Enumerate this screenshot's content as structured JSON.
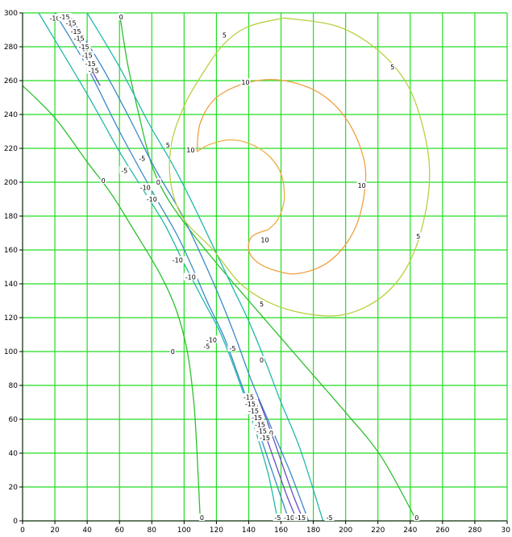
{
  "chart_data": {
    "type": "contour",
    "title": "",
    "xlabel": "",
    "ylabel": "",
    "xlim": [
      0,
      300
    ],
    "ylim": [
      0,
      300
    ],
    "grid": true,
    "x_ticks": [
      "0",
      "20",
      "40",
      "60",
      "80",
      "100",
      "120",
      "140",
      "160",
      "180",
      "200",
      "220",
      "240",
      "260",
      "280",
      "30"
    ],
    "y_ticks": [
      "0",
      "20",
      "40",
      "60",
      "80",
      "100",
      "120",
      "140",
      "160",
      "180",
      "200",
      "220",
      "240",
      "260",
      "280",
      "300"
    ],
    "colors": {
      "grid": "#22dd22",
      "axis": "#000000",
      "level_0": "#2cc02c",
      "level_m5": "#22b8aa",
      "level_m10": "#3b88c8",
      "level_m15": "#6a4cc0",
      "level_5": "#b8d040",
      "level_10": "#f0a040",
      "level_spiral": "#eab040"
    },
    "contours": [
      {
        "level": "0",
        "label": "0",
        "color_key": "level_0",
        "points": [
          [
            0,
            257
          ],
          [
            20,
            238
          ],
          [
            40,
            212
          ],
          [
            55,
            193
          ],
          [
            70,
            170
          ],
          [
            85,
            146
          ],
          [
            95,
            125
          ],
          [
            102,
            100
          ],
          [
            106,
            70
          ],
          [
            108,
            40
          ],
          [
            110,
            0
          ]
        ],
        "label_points": [
          [
            50,
            201
          ],
          [
            93,
            100
          ],
          [
            111,
            0
          ]
        ]
      },
      {
        "level": "0",
        "label": "0",
        "color_key": "level_0",
        "points": [
          [
            60,
            300
          ],
          [
            65,
            270
          ],
          [
            72,
            240
          ],
          [
            80,
            210
          ],
          [
            90,
            190
          ],
          [
            105,
            170
          ],
          [
            122,
            150
          ],
          [
            140,
            130
          ],
          [
            160,
            108
          ],
          [
            180,
            86
          ],
          [
            200,
            64
          ],
          [
            222,
            38
          ],
          [
            244,
            0
          ]
        ],
        "label_points": [
          [
            61,
            299
          ],
          [
            84,
            200
          ],
          [
            148,
            95
          ],
          [
            244,
            0
          ]
        ]
      },
      {
        "level": "-5",
        "label": "-5",
        "color_key": "level_m5",
        "points": [
          [
            10,
            300
          ],
          [
            40,
            252
          ],
          [
            60,
            218
          ],
          [
            75,
            195
          ],
          [
            88,
            175
          ],
          [
            100,
            152
          ],
          [
            112,
            130
          ],
          [
            122,
            112
          ],
          [
            132,
            88
          ],
          [
            142,
            60
          ],
          [
            152,
            28
          ],
          [
            158,
            0
          ]
        ],
        "label_points": [
          [
            63,
            207
          ],
          [
            114,
            103
          ],
          [
            158,
            0
          ]
        ]
      },
      {
        "level": "-5",
        "label": "-5",
        "color_key": "level_m5",
        "points": [
          [
            40,
            300
          ],
          [
            60,
            268
          ],
          [
            78,
            235
          ],
          [
            92,
            212
          ],
          [
            105,
            188
          ],
          [
            118,
            162
          ],
          [
            130,
            138
          ],
          [
            140,
            118
          ],
          [
            150,
            95
          ],
          [
            160,
            70
          ],
          [
            172,
            42
          ],
          [
            186,
            0
          ]
        ],
        "label_points": [
          [
            74,
            214
          ],
          [
            130,
            102
          ],
          [
            190,
            0
          ]
        ]
      },
      {
        "level": "-10",
        "label": "-10",
        "color_key": "level_m10",
        "points": [
          [
            20,
            300
          ],
          [
            40,
            268
          ],
          [
            60,
            230
          ],
          [
            80,
            195
          ],
          [
            95,
            170
          ],
          [
            105,
            150
          ],
          [
            115,
            128
          ],
          [
            125,
            108
          ],
          [
            135,
            82
          ],
          [
            145,
            56
          ],
          [
            155,
            28
          ],
          [
            165,
            0
          ]
        ],
        "label_points": [
          [
            20,
            297
          ],
          [
            76,
            197
          ],
          [
            96,
            154
          ],
          [
            117,
            107
          ],
          [
            165,
            0
          ]
        ]
      },
      {
        "level": "-10",
        "label": "-10",
        "color_key": "level_m10",
        "points": [
          [
            28,
            300
          ],
          [
            48,
            270
          ],
          [
            65,
            240
          ],
          [
            82,
            208
          ],
          [
            98,
            182
          ],
          [
            110,
            158
          ],
          [
            122,
            132
          ],
          [
            132,
            108
          ],
          [
            142,
            82
          ],
          [
            154,
            55
          ],
          [
            166,
            28
          ],
          [
            177,
            0
          ]
        ],
        "label_points": [
          [
            80,
            190
          ],
          [
            104,
            144
          ],
          [
            152,
            52
          ]
        ]
      },
      {
        "level": "-15",
        "label": "-15",
        "color_key": "level_m15",
        "points": [
          [
            25,
            300
          ],
          [
            35,
            284
          ],
          [
            42,
            268
          ],
          [
            48,
            257
          ]
        ],
        "label_points": [
          [
            26,
            299
          ],
          [
            30,
            294
          ],
          [
            33,
            289
          ],
          [
            35,
            285
          ],
          [
            38,
            280
          ],
          [
            40,
            275
          ],
          [
            42,
            270
          ],
          [
            44,
            266
          ]
        ]
      },
      {
        "level": "-15",
        "label": "-15",
        "color_key": "level_m15",
        "points": [
          [
            144,
            72
          ],
          [
            150,
            52
          ],
          [
            158,
            30
          ],
          [
            164,
            14
          ],
          [
            170,
            0
          ]
        ],
        "label_points": [
          [
            140,
            73
          ],
          [
            141,
            69
          ],
          [
            143,
            65
          ],
          [
            145,
            61
          ],
          [
            147,
            57
          ],
          [
            148,
            53
          ],
          [
            150,
            49
          ]
        ]
      },
      {
        "level": "-15",
        "label": "-15",
        "color_key": "level_m15",
        "points": [
          [
            146,
            72
          ],
          [
            154,
            52
          ],
          [
            162,
            30
          ],
          [
            168,
            14
          ],
          [
            174,
            0
          ]
        ],
        "label_points": [
          [
            172,
            0
          ]
        ]
      },
      {
        "level": "5",
        "label": "5",
        "color_key": "level_5",
        "points": [
          [
            162,
            297
          ],
          [
            195,
            292
          ],
          [
            220,
            278
          ],
          [
            238,
            258
          ],
          [
            248,
            232
          ],
          [
            252,
            205
          ],
          [
            248,
            176
          ],
          [
            238,
            150
          ],
          [
            222,
            132
          ],
          [
            200,
            122
          ],
          [
            178,
            122
          ],
          [
            155,
            128
          ],
          [
            135,
            140
          ],
          [
            118,
            160
          ],
          [
            100,
            178
          ],
          [
            92,
            198
          ],
          [
            92,
            222
          ],
          [
            100,
            245
          ],
          [
            112,
            265
          ],
          [
            125,
            282
          ],
          [
            140,
            292
          ],
          [
            162,
            297
          ]
        ],
        "label_points": [
          [
            125,
            287
          ],
          [
            229,
            268
          ],
          [
            90,
            222
          ],
          [
            245,
            168
          ],
          [
            148,
            128
          ]
        ]
      },
      {
        "level": "10",
        "label": "10",
        "color_key": "level_10",
        "points": [
          [
            108,
            218
          ],
          [
            110,
            235
          ],
          [
            120,
            250
          ],
          [
            140,
            259
          ],
          [
            162,
            260
          ],
          [
            185,
            252
          ],
          [
            202,
            235
          ],
          [
            212,
            210
          ],
          [
            210,
            185
          ],
          [
            202,
            166
          ],
          [
            188,
            152
          ],
          [
            170,
            146
          ],
          [
            156,
            148
          ],
          [
            145,
            153
          ],
          [
            140,
            160
          ],
          [
            142,
            168
          ],
          [
            152,
            172
          ]
        ],
        "label_points": [
          [
            138,
            259
          ],
          [
            210,
            198
          ],
          [
            150,
            166
          ]
        ]
      },
      {
        "level": "10",
        "label": "10",
        "color_key": "level_spiral",
        "points": [
          [
            108,
            218
          ],
          [
            115,
            222
          ],
          [
            128,
            225
          ],
          [
            140,
            223
          ],
          [
            152,
            216
          ],
          [
            160,
            205
          ],
          [
            162,
            190
          ],
          [
            158,
            178
          ],
          [
            152,
            172
          ]
        ],
        "label_points": [
          [
            104,
            219
          ]
        ]
      }
    ]
  }
}
